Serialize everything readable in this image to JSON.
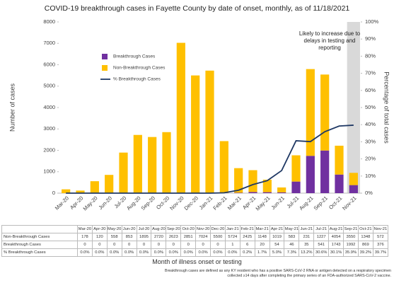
{
  "chart_data": {
    "type": "bar",
    "title": "COVID-19 breakthrough cases in Fayette County by date of onset, monthly, as of 11/18/2021",
    "x_label": "Month of illness onset or testing",
    "y_label": "Number of cases",
    "y2_label": "Percentage of total cases",
    "annotation": "Likely to increase due to delays in testing and reporting",
    "footnote": "Breakthrough cases are defined as any KY resident who has a positive SARS-CoV-2 RNA or antigen detected on a respiratory specimen collected ≥14 days after completing the primary series of an FDA-authorized SARS-CoV-2 vaccine.",
    "categories": [
      "Mar-20",
      "Apr-20",
      "May-20",
      "Jun-20",
      "Jul-20",
      "Aug-20",
      "Sep-20",
      "Oct-20",
      "Nov-20",
      "Dec-20",
      "Jan-21",
      "Feb-21",
      "Mar-21",
      "Apr-21",
      "May-21",
      "Jun-21",
      "Jul-21",
      "Aug-21",
      "Sep-21",
      "Oct-21",
      "Nov-21"
    ],
    "series": [
      {
        "name": "Breakthrough Cases",
        "color": "#7030a0",
        "values": [
          0,
          0,
          0,
          0,
          0,
          0,
          0,
          0,
          0,
          0,
          1,
          6,
          20,
          54,
          46,
          35,
          541,
          1743,
          1992,
          869,
          376
        ]
      },
      {
        "name": "Non-Breakthrough Cases",
        "color": "#ffc000",
        "values": [
          178,
          120,
          558,
          853,
          1895,
          2720,
          2623,
          2851,
          7024,
          5500,
          5724,
          2425,
          1148,
          1019,
          583,
          231,
          1227,
          4054,
          3550,
          1348,
          572
        ]
      },
      {
        "name": "% Breakthrough Cases",
        "color": "#1f3864",
        "type": "line",
        "axis": "y2",
        "values": [
          0,
          0,
          0,
          0,
          0,
          0,
          0,
          0,
          0,
          0,
          0,
          0.2,
          1.7,
          5.0,
          7.3,
          13.2,
          30.6,
          30.1,
          35.9,
          39.2,
          39.7
        ],
        "value_labels": [
          "0.0%",
          "0.0%",
          "0.0%",
          "0.0%",
          "0.0%",
          "0.0%",
          "0.0%",
          "0.0%",
          "0.0%",
          "0.0%",
          "0.0%",
          "0.2%",
          "1.7%",
          "5.0%",
          "7.3%",
          "13.2%",
          "30.6%",
          "30.1%",
          "35.9%",
          "39.2%",
          "39.7%"
        ]
      }
    ],
    "ylim": [
      0,
      8000
    ],
    "yticks": [
      0,
      1000,
      2000,
      3000,
      4000,
      5000,
      6000,
      7000,
      8000
    ],
    "y2lim": [
      0,
      100
    ],
    "y2ticks": [
      {
        "value": 0,
        "label": "0%"
      },
      {
        "value": 10,
        "label": "10%"
      },
      {
        "value": 20,
        "label": "20%"
      },
      {
        "value": 30,
        "label": "30%"
      },
      {
        "value": 40,
        "label": "40%"
      },
      {
        "value": 50,
        "label": "50%"
      },
      {
        "value": 60,
        "label": "60%"
      },
      {
        "value": 70,
        "label": "70%"
      },
      {
        "value": 80,
        "label": "80%"
      },
      {
        "value": 90,
        "label": "90%"
      },
      {
        "value": 100,
        "label": "100%"
      }
    ],
    "stacked": true,
    "grid": false
  }
}
